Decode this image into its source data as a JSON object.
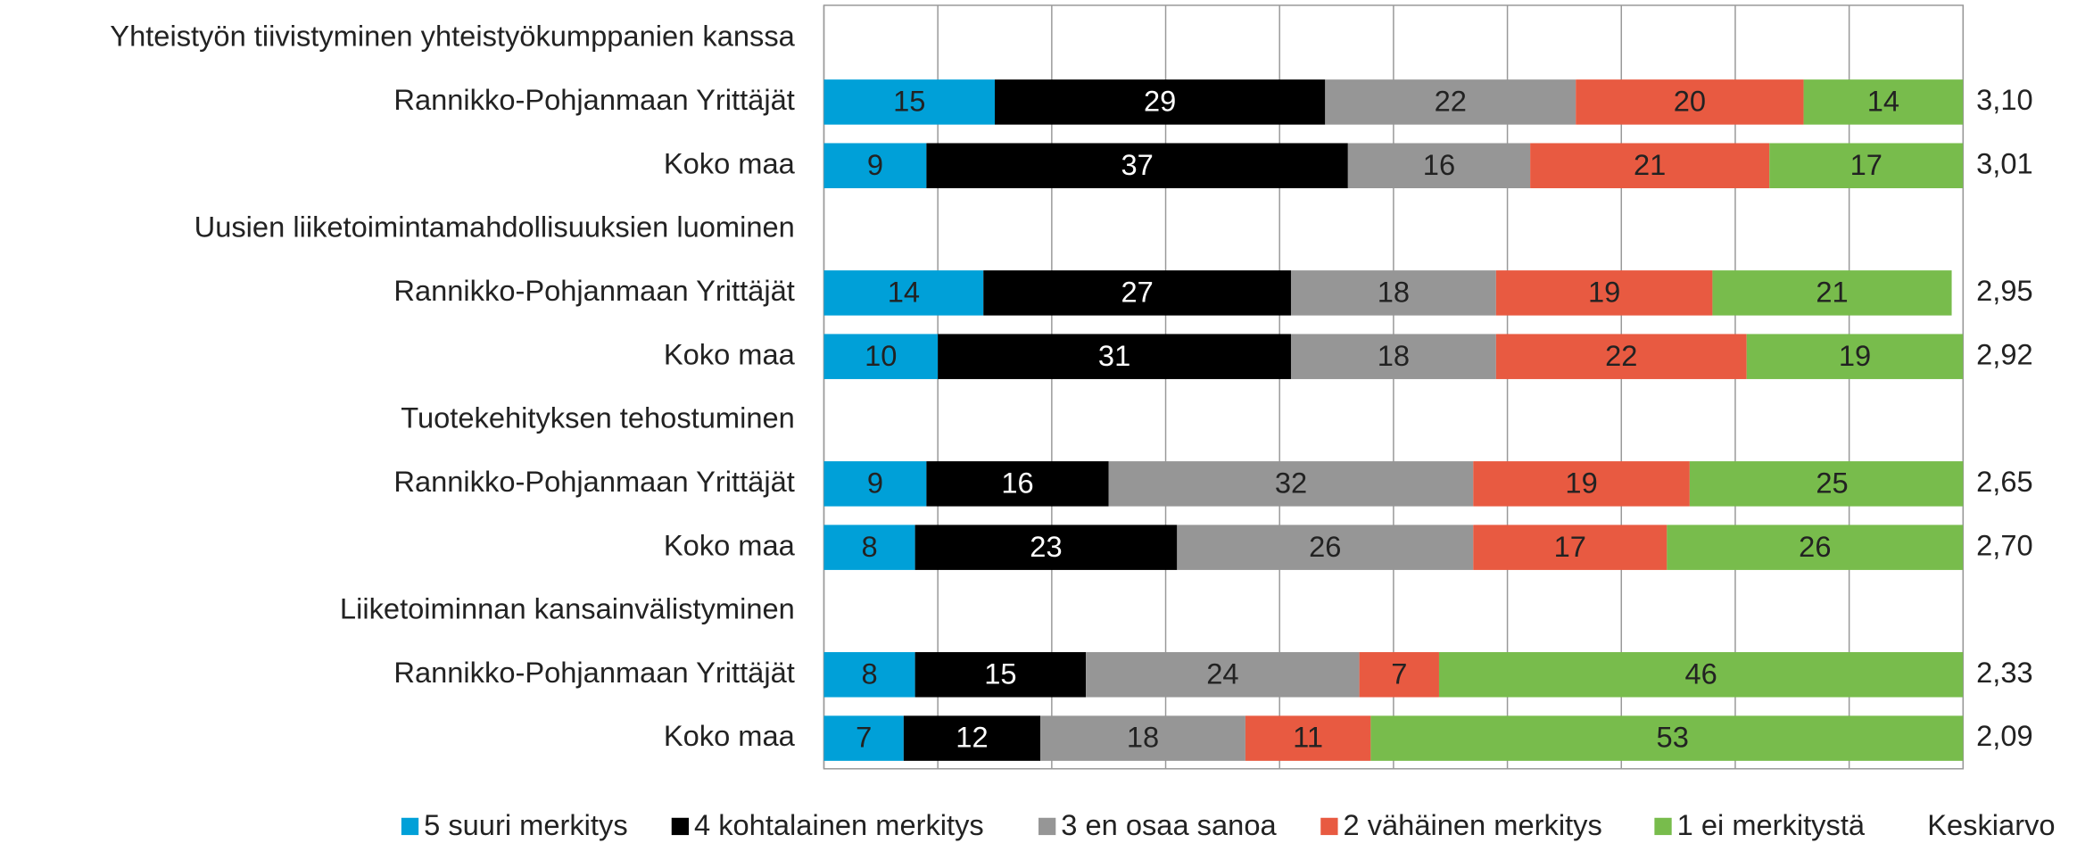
{
  "chart_data": {
    "type": "stacked-bar-horizontal",
    "categories": [
      "Yhteistyön tiivistyminen yhteistyökumppanien kanssa",
      "Rannikko-Pohjanmaan Yrittäjät",
      "Koko maa",
      "Uusien liiketoimintamahdollisuuksien luominen",
      "Rannikko-Pohjanmaan Yrittäjät",
      "Koko maa",
      "Tuotekehityksen tehostuminen",
      "Rannikko-Pohjanmaan Yrittäjät",
      "Koko maa",
      "Liiketoiminnan kansainvälistyminen",
      "Rannikko-Pohjanmaan Yrittäjät",
      "Koko maa"
    ],
    "series": [
      {
        "name": "5 suuri merkitys",
        "color": "#00a0d8",
        "label_color": "#222222",
        "values": [
          null,
          15,
          9,
          null,
          14,
          10,
          null,
          9,
          8,
          null,
          8,
          7
        ]
      },
      {
        "name": "4 kohtalainen merkitys",
        "color": "#000000",
        "label_color": "#ffffff",
        "values": [
          null,
          29,
          37,
          null,
          27,
          31,
          null,
          16,
          23,
          null,
          15,
          12
        ]
      },
      {
        "name": "3 en osaa sanoa",
        "color": "#969696",
        "label_color": "#222222",
        "values": [
          null,
          22,
          16,
          null,
          18,
          18,
          null,
          32,
          26,
          null,
          24,
          18
        ]
      },
      {
        "name": "2 vähäinen merkitys",
        "color": "#e85a41",
        "label_color": "#222222",
        "values": [
          null,
          20,
          21,
          null,
          19,
          22,
          null,
          19,
          17,
          null,
          7,
          11
        ]
      },
      {
        "name": "1 ei merkitystä",
        "color": "#78bc4c",
        "label_color": "#222222",
        "values": [
          null,
          14,
          17,
          null,
          21,
          19,
          null,
          25,
          26,
          null,
          46,
          53
        ]
      }
    ],
    "means": {
      "name": "Keskiarvo",
      "values": [
        null,
        3.1,
        3.01,
        null,
        2.95,
        2.92,
        null,
        2.65,
        2.7,
        null,
        2.33,
        2.09
      ],
      "value_labels": [
        null,
        "3,10",
        "3,01",
        null,
        "2,95",
        "2,92",
        null,
        "2,65",
        "2,70",
        null,
        "2,33",
        "2,09"
      ]
    },
    "xlim": [
      0,
      100
    ],
    "xticks": [
      0,
      10,
      20,
      30,
      40,
      50,
      60,
      70,
      80,
      90,
      100
    ],
    "grid": true,
    "tick_labels": false,
    "legend": "bottom"
  }
}
